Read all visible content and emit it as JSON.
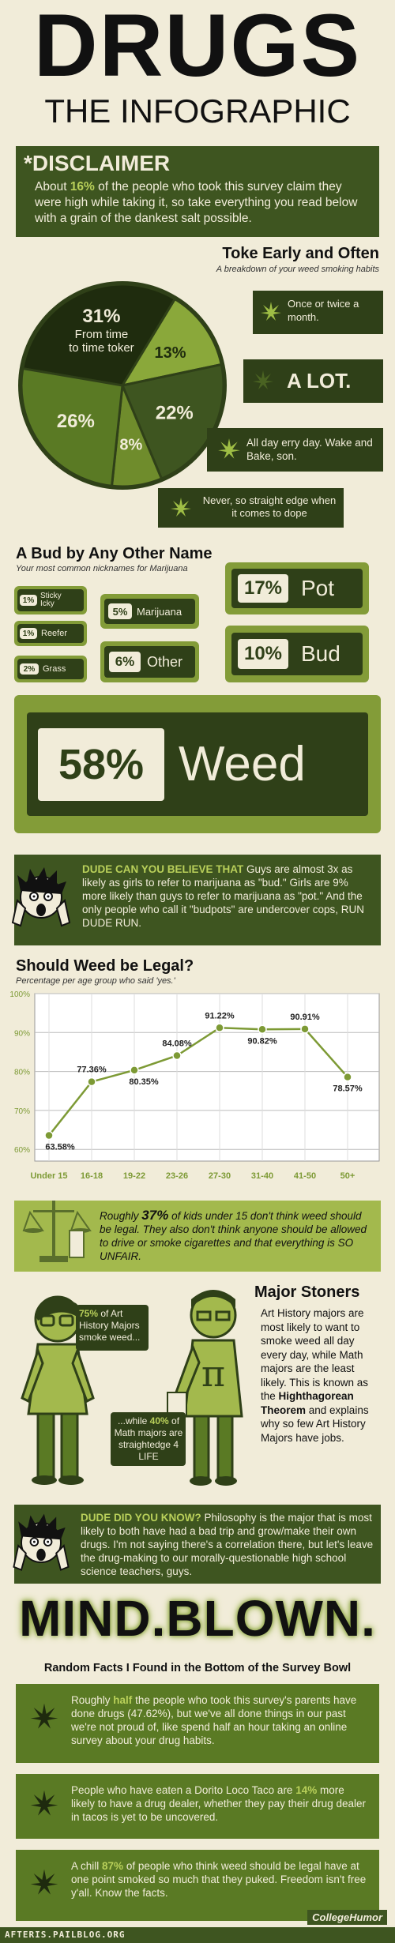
{
  "header": {
    "title": "DRUGS",
    "subtitle": "THE INFOGRAPHIC"
  },
  "disclaimer": {
    "heading": "*DISCLAIMER",
    "pre": "About ",
    "pct": "16%",
    "post": " of the people who took this survey claim they were high while taking it, so take everything you read below with a grain of the dankest salt possible."
  },
  "toke": {
    "title": "Toke Early and Often",
    "subtitle": "A breakdown of your weed smoking habits",
    "pie": [
      {
        "label": "31%",
        "desc": "From time to time toker",
        "value": 31
      },
      {
        "label": "13%",
        "desc": "",
        "value": 13
      },
      {
        "label": "22%",
        "desc": "",
        "value": 22
      },
      {
        "label": "8%",
        "desc": "",
        "value": 8
      },
      {
        "label": "26%",
        "desc": "",
        "value": 26
      }
    ],
    "legend": [
      {
        "text": "Once or twice a month."
      },
      {
        "text": "A LOT."
      },
      {
        "text": "All day erry day. Wake and Bake, son."
      },
      {
        "text": "Never, so straight edge when it comes to dope"
      }
    ]
  },
  "nicknames": {
    "title": "A Bud by Any Other Name",
    "subtitle": "Your most common nicknames for Marijuana",
    "items": [
      {
        "pct": "1%",
        "label": "Sticky Icky"
      },
      {
        "pct": "1%",
        "label": "Reefer"
      },
      {
        "pct": "2%",
        "label": "Grass"
      },
      {
        "pct": "5%",
        "label": "Marijuana"
      },
      {
        "pct": "6%",
        "label": "Other"
      },
      {
        "pct": "17%",
        "label": "Pot"
      },
      {
        "pct": "10%",
        "label": "Bud"
      },
      {
        "pct": "58%",
        "label": "Weed"
      }
    ]
  },
  "dude1": {
    "lead": "DUDE CAN YOU BELIEVE THAT",
    "text": " Guys are almost 3x as likely as girls to refer to marijuana  as \"bud.\" Girls are 9% more likely than guys to refer to marijuana as \"pot.\" And the only people who call it \"budpots\" are undercover cops, RUN DUDE RUN."
  },
  "chart_data": {
    "type": "line",
    "title": "Should Weed be Legal?",
    "subtitle": "Percentage per age group who said 'yes.'",
    "categories": [
      "Under 15",
      "16-18",
      "19-22",
      "23-26",
      "27-30",
      "31-40",
      "41-50",
      "50+"
    ],
    "values": [
      63.58,
      77.36,
      80.35,
      84.08,
      91.22,
      90.82,
      90.91,
      78.57
    ],
    "value_labels": [
      "63.58%",
      "77.36%",
      "80.35%",
      "84.08%",
      "91.22%",
      "90.82%",
      "90.91%",
      "78.57%"
    ],
    "yticks": [
      "100%",
      "90%",
      "80%",
      "70%",
      "60%"
    ],
    "ylim": [
      57,
      100
    ],
    "grid": true
  },
  "kids": {
    "pre": "Roughly ",
    "pct": "37%",
    "post": " of kids under 15 don't think weed should be legal. They also don't think anyone should be allowed to drive or smoke cigarettes and that everything is SO UNFAIR."
  },
  "stoners": {
    "title": "Major Stoners",
    "art_pct": "75%",
    "art_text": " of Art History Majors smoke weed...",
    "math_pre": "...while ",
    "math_pct": "40%",
    "math_text": " of Math majors are straightedge 4 LIFE",
    "body": "Art History majors are most likely to want to smoke weed all day every day, while Math majors are the least likely. This is known as the ",
    "theorem": "Highthagorean Theorem",
    "body2": " and explains why so few Art History Majors have jobs."
  },
  "dude2": {
    "lead": "DUDE DID YOU KNOW?",
    "text": " Philosophy is the major that is most likely to both have had a bad trip and grow/make their own drugs. I'm not saying there's a correlation there, but let's leave the drug-making to our morally-questionable high school science teachers, guys."
  },
  "mind": {
    "title": "MIND.BLOWN.",
    "subtitle": "Random Facts I Found in the Bottom of the Survey Bowl"
  },
  "facts": [
    {
      "pre": "Roughly ",
      "hl": "half",
      "post": " the people who took this survey's parents have done drugs (47.62%), but we've all done things in our past we're not proud of, like spend half an hour taking an online survey about your drug habits."
    },
    {
      "pre": "People who have eaten a Dorito Loco Taco are ",
      "hl": "14%",
      "post": " more likely to have a drug dealer, whether they pay their drug dealer in tacos is yet to be uncovered."
    },
    {
      "pre": "A chill ",
      "hl": "87%",
      "post": " of people who think weed should be legal have at one point smoked so much that they puked. Freedom isn't free y'all. Know the facts."
    }
  ],
  "footer": {
    "site": "CollegeHumor",
    "watermark": "AFTERIS.PAILBLOG.ORG"
  },
  "colors": {
    "dark": "#3e5520",
    "green": "#7d9a35",
    "light": "#a3b94d",
    "cream": "#f1ecd9"
  }
}
